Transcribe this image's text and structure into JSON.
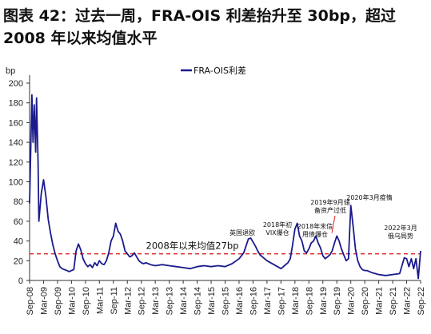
{
  "title_line1": "图表 42：过去一周，FRA-OIS 利差抬升至 30bp，超过",
  "title_line2": "2008 年以来均值水平",
  "chart_data": {
    "type": "line",
    "ylabel": "bp",
    "ylim": [
      0,
      200
    ],
    "yticks": [
      0,
      20,
      40,
      60,
      80,
      100,
      120,
      140,
      160,
      180,
      200
    ],
    "x_range": [
      "2008-09",
      "2022-09"
    ],
    "xticks": [
      "Sep-08",
      "Mar-09",
      "Sep-09",
      "Mar-10",
      "Sep-10",
      "Mar-11",
      "Sep-11",
      "Mar-12",
      "Sep-12",
      "Mar-13",
      "Sep-13",
      "Mar-14",
      "Sep-14",
      "Mar-15",
      "Sep-15",
      "Mar-16",
      "Sep-16",
      "Mar-17",
      "Sep-17",
      "Mar-18",
      "Sep-18",
      "Mar-19",
      "Sep-19",
      "Mar-20",
      "Sep-20",
      "Mar-21",
      "Sep-21",
      "Mar-22",
      "Sep-22"
    ],
    "legend_position": "top-center",
    "series": [
      {
        "name": "FRA-OIS利差",
        "color": "#1a1a8c",
        "points": [
          [
            "2008-09",
            78
          ],
          [
            "2008-10",
            188
          ],
          [
            "2008-10-15",
            140
          ],
          [
            "2008-11",
            178
          ],
          [
            "2008-11-20",
            130
          ],
          [
            "2008-12",
            185
          ],
          [
            "2008-12-20",
            120
          ],
          [
            "2009-01",
            60
          ],
          [
            "2009-02",
            88
          ],
          [
            "2009-03",
            102
          ],
          [
            "2009-04",
            85
          ],
          [
            "2009-05",
            62
          ],
          [
            "2009-06",
            48
          ],
          [
            "2009-07",
            36
          ],
          [
            "2009-08",
            27
          ],
          [
            "2009-09",
            20
          ],
          [
            "2009-10",
            14
          ],
          [
            "2009-11",
            12
          ],
          [
            "2009-12",
            11
          ],
          [
            "2010-01",
            10
          ],
          [
            "2010-02",
            9
          ],
          [
            "2010-03",
            10
          ],
          [
            "2010-04",
            11
          ],
          [
            "2010-05",
            30
          ],
          [
            "2010-06",
            37
          ],
          [
            "2010-07",
            31
          ],
          [
            "2010-08",
            22
          ],
          [
            "2010-09",
            17
          ],
          [
            "2010-10",
            14
          ],
          [
            "2010-11",
            16
          ],
          [
            "2010-12",
            13
          ],
          [
            "2011-01",
            18
          ],
          [
            "2011-02",
            15
          ],
          [
            "2011-03",
            20
          ],
          [
            "2011-04",
            17
          ],
          [
            "2011-05",
            16
          ],
          [
            "2011-06",
            20
          ],
          [
            "2011-07",
            28
          ],
          [
            "2011-08",
            40
          ],
          [
            "2011-09",
            45
          ],
          [
            "2011-10",
            58
          ],
          [
            "2011-11",
            50
          ],
          [
            "2011-12",
            47
          ],
          [
            "2012-01",
            40
          ],
          [
            "2012-02",
            30
          ],
          [
            "2012-03",
            27
          ],
          [
            "2012-04",
            24
          ],
          [
            "2012-05",
            25
          ],
          [
            "2012-06",
            28
          ],
          [
            "2012-07",
            24
          ],
          [
            "2012-08",
            20
          ],
          [
            "2012-09",
            18
          ],
          [
            "2012-10",
            17
          ],
          [
            "2012-11",
            18
          ],
          [
            "2012-12",
            17
          ],
          [
            "2013-01",
            16
          ],
          [
            "2013-03",
            15
          ],
          [
            "2013-06",
            16
          ],
          [
            "2013-09",
            15
          ],
          [
            "2013-12",
            14
          ],
          [
            "2014-03",
            13
          ],
          [
            "2014-06",
            12
          ],
          [
            "2014-09",
            14
          ],
          [
            "2014-12",
            15
          ],
          [
            "2015-03",
            14
          ],
          [
            "2015-06",
            15
          ],
          [
            "2015-09",
            14
          ],
          [
            "2015-12",
            17
          ],
          [
            "2016-03",
            22
          ],
          [
            "2016-05",
            28
          ],
          [
            "2016-06",
            35
          ],
          [
            "2016-07",
            42
          ],
          [
            "2016-08",
            43
          ],
          [
            "2016-09",
            39
          ],
          [
            "2016-10",
            35
          ],
          [
            "2016-11",
            30
          ],
          [
            "2016-12",
            26
          ],
          [
            "2017-03",
            20
          ],
          [
            "2017-06",
            16
          ],
          [
            "2017-09",
            12
          ],
          [
            "2017-12",
            18
          ],
          [
            "2018-01",
            22
          ],
          [
            "2018-02",
            36
          ],
          [
            "2018-03",
            52
          ],
          [
            "2018-04",
            58
          ],
          [
            "2018-05",
            45
          ],
          [
            "2018-06",
            40
          ],
          [
            "2018-07",
            30
          ],
          [
            "2018-08",
            28
          ],
          [
            "2018-09",
            32
          ],
          [
            "2018-10",
            38
          ],
          [
            "2018-11",
            40
          ],
          [
            "2018-12",
            45
          ],
          [
            "2019-01",
            38
          ],
          [
            "2019-02",
            33
          ],
          [
            "2019-03",
            25
          ],
          [
            "2019-04",
            22
          ],
          [
            "2019-05",
            24
          ],
          [
            "2019-06",
            26
          ],
          [
            "2019-07",
            30
          ],
          [
            "2019-08",
            38
          ],
          [
            "2019-09",
            45
          ],
          [
            "2019-10",
            40
          ],
          [
            "2019-11",
            32
          ],
          [
            "2019-12",
            26
          ],
          [
            "2020-01",
            20
          ],
          [
            "2020-02",
            22
          ],
          [
            "2020-03",
            76
          ],
          [
            "2020-04",
            55
          ],
          [
            "2020-05",
            32
          ],
          [
            "2020-06",
            20
          ],
          [
            "2020-07",
            14
          ],
          [
            "2020-08",
            11
          ],
          [
            "2020-09",
            10
          ],
          [
            "2020-10",
            10
          ],
          [
            "2020-11",
            9
          ],
          [
            "2020-12",
            8
          ],
          [
            "2021-03",
            6
          ],
          [
            "2021-06",
            5
          ],
          [
            "2021-09",
            6
          ],
          [
            "2021-12",
            7
          ],
          [
            "2022-01",
            15
          ],
          [
            "2022-02",
            23
          ],
          [
            "2022-03",
            22
          ],
          [
            "2022-04",
            14
          ],
          [
            "2022-05",
            22
          ],
          [
            "2022-06",
            12
          ],
          [
            "2022-07",
            22
          ],
          [
            "2022-08",
            2
          ],
          [
            "2022-09",
            30
          ]
        ]
      }
    ],
    "reference_lines": [
      {
        "label": "2008年以来均值27bp",
        "value": 27,
        "color": "#e02020",
        "style": "dashed"
      }
    ],
    "annotations": [
      {
        "text": "英国退欧",
        "date": "2016-06",
        "value": 46
      },
      {
        "text": "2018年初",
        "date": "2018-03",
        "value": 58,
        "line": 1
      },
      {
        "text": "VIX爆仓",
        "date": "2018-03",
        "value": 58,
        "line": 2
      },
      {
        "text": "2018年末信",
        "date": "2018-12",
        "value": 53,
        "line": 1
      },
      {
        "text": "用债爆仓",
        "date": "2018-12",
        "value": 53,
        "line": 2
      },
      {
        "text": "2019年9月储",
        "date": "2019-09",
        "value": 73,
        "line": 1,
        "arrow": true
      },
      {
        "text": "备资产过低",
        "date": "2019-09",
        "value": 73,
        "line": 2
      },
      {
        "text": "2020年3月疫情",
        "date": "2020-03",
        "value": 83
      },
      {
        "text": "2022年3月",
        "date": "2022-03",
        "value": 48,
        "line": 1
      },
      {
        "text": "俄乌局势",
        "date": "2022-03",
        "value": 48,
        "line": 2
      }
    ]
  }
}
